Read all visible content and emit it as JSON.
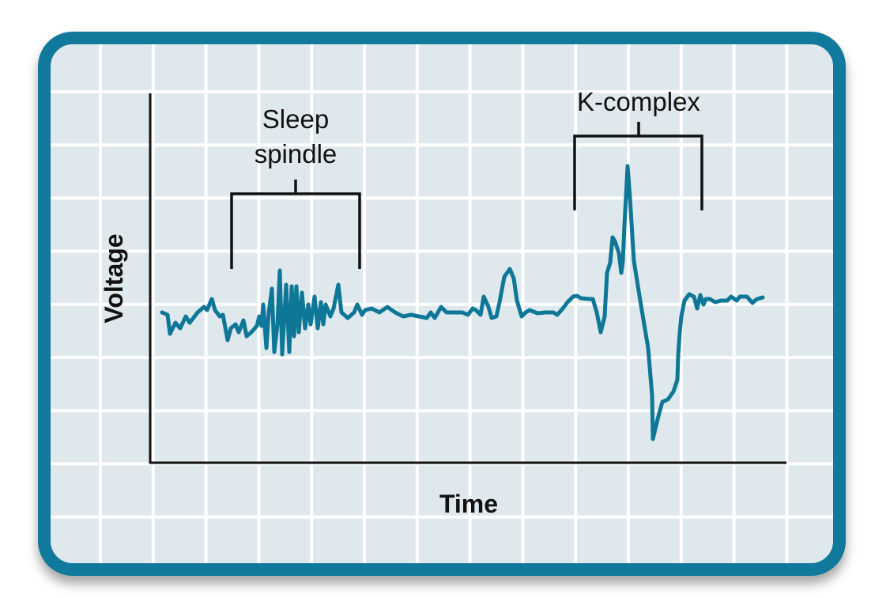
{
  "labels": {
    "sleep_spindle_line1": "Sleep",
    "sleep_spindle_line2": "spindle",
    "k_complex": "K-complex",
    "x_axis": "Time",
    "y_axis": "Voltage"
  },
  "colors": {
    "frame": "#117a9c",
    "background": "#dfe8ec",
    "grid": "#ffffff",
    "trace": "#0e7797",
    "axes": "#111111"
  }
}
